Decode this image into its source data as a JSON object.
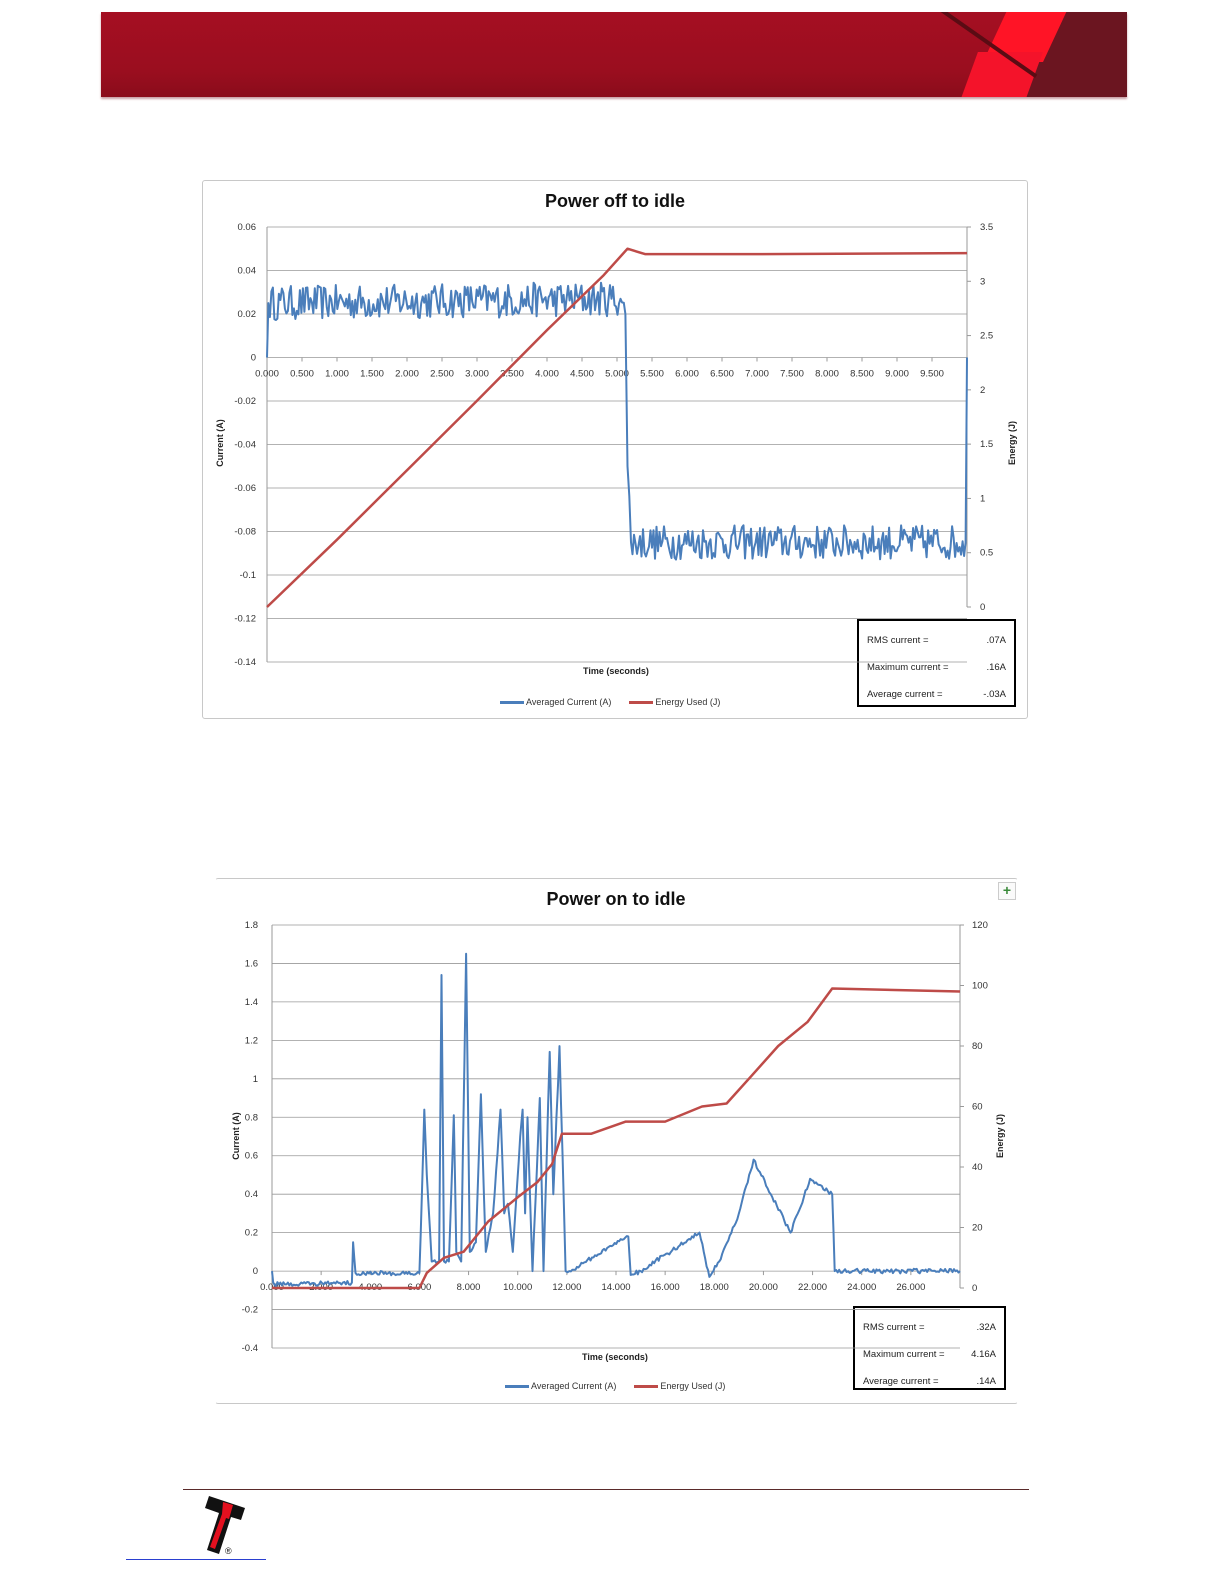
{
  "header": {
    "brand_color": "#a50f22"
  },
  "footer": {
    "logo": "Innovative Technology T logo",
    "registered_mark": "®"
  },
  "chart_data": [
    {
      "type": "line",
      "title": "Power off to idle",
      "xlabel": "Time (seconds)",
      "ylabel": "Current (A)",
      "y2label": "Energy (J)",
      "xlim": [
        0,
        10
      ],
      "ylim": [
        -0.14,
        0.06
      ],
      "y2lim": [
        0,
        3.5
      ],
      "grid": true,
      "legend_placement": "bottom",
      "x_ticks": [
        "0.000",
        "0.500",
        "1.000",
        "1.500",
        "2.000",
        "2.500",
        "3.000",
        "3.500",
        "4.000",
        "4.500",
        "5.000",
        "5.500",
        "6.000",
        "6.500",
        "7.000",
        "7.500",
        "8.000",
        "8.500",
        "9.000",
        "9.500"
      ],
      "y_ticks": [
        "0.06",
        "0.04",
        "0.02",
        "0",
        "-0.02",
        "-0.04",
        "-0.06",
        "-0.08",
        "-0.1",
        "-0.12",
        "-0.14"
      ],
      "y2_ticks": [
        "3.5",
        "3",
        "2.5",
        "2",
        "1.5",
        "1",
        "0.5",
        "0"
      ],
      "series": [
        {
          "name": "Averaged Current (A)",
          "color": "#4a7ebb",
          "axis": "left",
          "noise": 0.008,
          "x": [
            0,
            0.02,
            5.05,
            5.12,
            5.15,
            5.2,
            9.98,
            10.0
          ],
          "y": [
            0,
            0.025,
            0.027,
            0.02,
            -0.05,
            -0.085,
            -0.085,
            0.0
          ]
        },
        {
          "name": "Energy Used (J)",
          "color": "#be4b48",
          "axis": "right",
          "noise": 0,
          "x": [
            0,
            1,
            2,
            3,
            4,
            4.8,
            5.15,
            5.4,
            7,
            10
          ],
          "y": [
            0,
            0.62,
            1.26,
            1.9,
            2.55,
            3.05,
            3.3,
            3.25,
            3.25,
            3.26
          ]
        }
      ],
      "stats": [
        {
          "label": "RMS current =",
          "value": ".07A"
        },
        {
          "label": "Maximum current =",
          "value": ".16A"
        },
        {
          "label": "Average current =",
          "value": "-.03A"
        }
      ]
    },
    {
      "type": "line",
      "title": "Power on to idle",
      "xlabel": "Time (seconds)",
      "ylabel": "Current (A)",
      "y2label": "Energy (J)",
      "xlim": [
        0,
        28
      ],
      "ylim": [
        -0.4,
        1.8
      ],
      "y2lim": [
        0,
        120
      ],
      "grid": true,
      "legend_placement": "bottom",
      "x_ticks": [
        "0.000",
        "2.000",
        "4.000",
        "6.000",
        "8.000",
        "10.000",
        "12.000",
        "14.000",
        "16.000",
        "18.000",
        "20.000",
        "22.000",
        "24.000",
        "26.000"
      ],
      "y_ticks": [
        "1.8",
        "1.6",
        "1.4",
        "1.2",
        "1",
        "0.8",
        "0.6",
        "0.4",
        "0.2",
        "0",
        "-0.2",
        "-0.4"
      ],
      "y2_ticks": [
        "120",
        "100",
        "80",
        "60",
        "40",
        "20",
        "0"
      ],
      "series": [
        {
          "name": "Averaged Current (A)",
          "color": "#4a7ebb",
          "axis": "left",
          "noise": 0.012,
          "x": [
            0,
            0.05,
            0.1,
            3.25,
            3.3,
            3.4,
            6.0,
            6.1,
            6.2,
            6.3,
            6.5,
            6.8,
            6.9,
            7.0,
            7.2,
            7.4,
            7.5,
            7.7,
            7.9,
            8.05,
            8.3,
            8.5,
            8.7,
            9.0,
            9.3,
            9.45,
            9.6,
            9.8,
            10.1,
            10.2,
            10.3,
            10.4,
            10.6,
            10.9,
            11.05,
            11.3,
            11.45,
            11.7,
            11.95,
            12.1,
            14.5,
            14.6,
            15,
            17.4,
            17.8,
            18.2,
            19.0,
            19.6,
            20.3,
            21.1,
            21.4,
            21.9,
            22.8,
            22.9,
            28
          ],
          "y": [
            0,
            -0.06,
            -0.07,
            -0.06,
            0.15,
            -0.01,
            -0.01,
            0.4,
            0.84,
            0.5,
            0.05,
            0.05,
            1.54,
            0.05,
            0.05,
            0.81,
            0.1,
            0.05,
            1.65,
            0.1,
            0.15,
            0.92,
            0.1,
            0.3,
            0.84,
            0.3,
            0.35,
            0.1,
            0.7,
            0.84,
            0.3,
            0.8,
            0.0,
            0.9,
            0.0,
            1.14,
            0.4,
            1.17,
            0.0,
            0.0,
            0.18,
            -0.02,
            0.0,
            0.2,
            -0.03,
            0.05,
            0.3,
            0.58,
            0.4,
            0.2,
            0.3,
            0.48,
            0.4,
            0.0,
            0.0
          ]
        },
        {
          "name": "Energy Used (J)",
          "color": "#be4b48",
          "axis": "right",
          "noise": 0,
          "x": [
            0,
            6.0,
            6.3,
            7.0,
            7.8,
            8.3,
            8.8,
            10.0,
            10.8,
            11.4,
            11.8,
            13,
            14.4,
            16,
            17.5,
            18.5,
            19.5,
            20.6,
            21.8,
            22.8,
            28
          ],
          "y": [
            0,
            0,
            5,
            10,
            12,
            17,
            22,
            30,
            35,
            41,
            51,
            51,
            55,
            55,
            60,
            61,
            70,
            80,
            88,
            99,
            98
          ]
        }
      ],
      "stats": [
        {
          "label": "RMS current =",
          "value": ".32A"
        },
        {
          "label": "Maximum current =",
          "value": "4.16A"
        },
        {
          "label": "Average current =",
          "value": ".14A"
        }
      ],
      "add_element_button": "+"
    }
  ]
}
